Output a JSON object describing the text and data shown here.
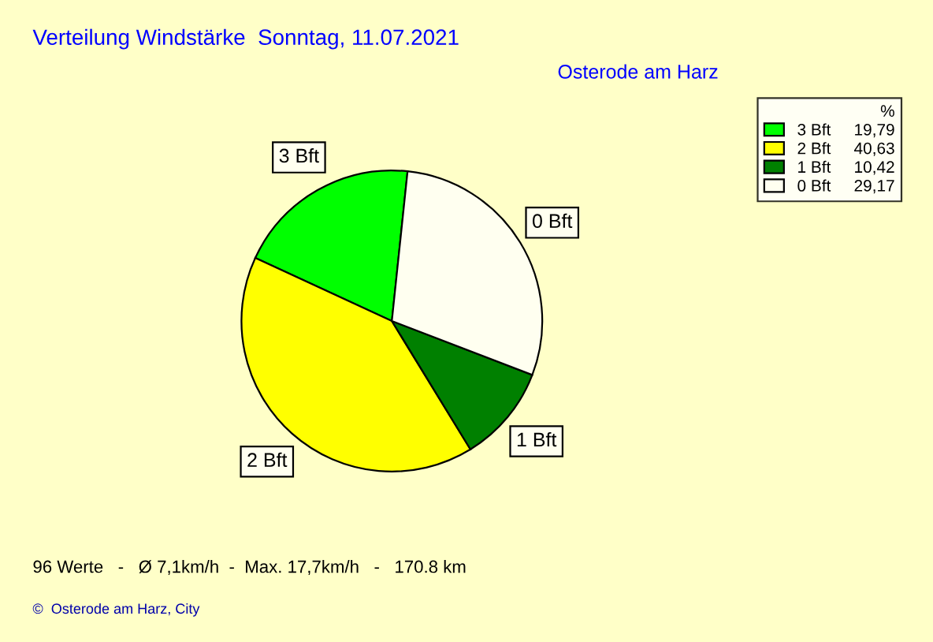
{
  "chart_data": {
    "type": "pie",
    "title": "Verteilung Windstärke  Sonntag, 11.07.2021",
    "subtitle": "Osterode am Harz",
    "categories": [
      "3 Bft",
      "2 Bft",
      "1 Bft",
      "0 Bft"
    ],
    "values": [
      19.79,
      40.63,
      10.42,
      29.17
    ],
    "value_labels": [
      "19,79",
      "40,63",
      "10,42",
      "29,17"
    ],
    "colors": [
      "#00ff00",
      "#ffff00",
      "#008000",
      "#fffff0"
    ],
    "legend": "top right",
    "legend_title": "%",
    "annotations": [
      "96 Werte   -   Ø 7,1km/h  -  Max. 17,7km/h   -   170.8 km",
      "©  Osterode am Harz, City"
    ]
  }
}
